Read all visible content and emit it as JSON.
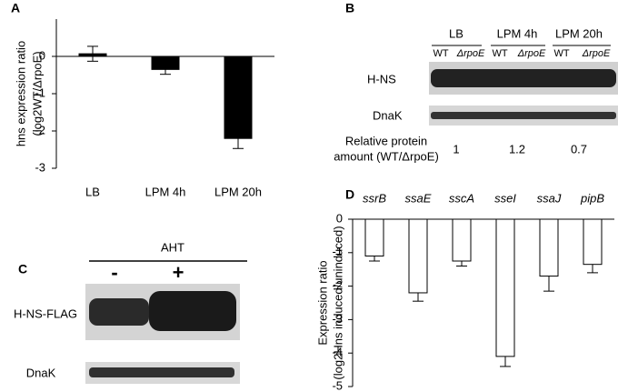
{
  "chart_data": [
    {
      "type": "bar",
      "panel_label": "A",
      "ylabel": [
        "hns expression ratio",
        "(log2WT/ΔrpoE)"
      ],
      "categories": [
        "LB",
        "LPM 4h",
        "LPM 20h"
      ],
      "values": [
        0.07,
        -0.35,
        -2.2
      ],
      "errors": [
        0.2,
        0.13,
        0.27
      ],
      "color": "#000000",
      "edgecolor": "#000000",
      "ylim": [
        -3,
        1
      ],
      "yticks": [
        -3,
        -2,
        -1,
        0
      ],
      "category_label_position": "bottom",
      "category_labels_italic": false
    },
    {
      "type": "bar",
      "panel_label": "D",
      "ylabel": [
        "Expression ratio",
        "(log2Hns induced/uninduced)"
      ],
      "categories": [
        "ssrB",
        "ssaE",
        "sscA",
        "sseI",
        "ssaJ",
        "pipB"
      ],
      "values": [
        -1.1,
        -2.2,
        -1.25,
        -4.1,
        -1.7,
        -1.35
      ],
      "errors": [
        0.15,
        0.25,
        0.15,
        0.3,
        0.45,
        0.25
      ],
      "color": "#ffffff",
      "edgecolor": "#000000",
      "ylim": [
        -5,
        0
      ],
      "yticks": [
        -5,
        -4,
        -3,
        -2,
        -1,
        0
      ],
      "category_label_position": "top",
      "category_labels_italic": true
    }
  ],
  "blot_b": {
    "panel_label": "B",
    "conditions": [
      "LB",
      "LPM 4h",
      "LPM 20h"
    ],
    "strains": [
      "WT",
      "ΔrpoE",
      "WT",
      "ΔrpoE",
      "WT",
      "ΔrpoE"
    ],
    "rows": [
      "H-NS",
      "DnaK"
    ],
    "quant_label": [
      "Relative protein",
      "amount (WT/ΔrpoE)"
    ],
    "quant_values": [
      "1",
      "1.2",
      "0.7"
    ]
  },
  "blot_c": {
    "panel_label": "C",
    "treatment": "AHT",
    "conditions": [
      "-",
      "+"
    ],
    "rows": [
      "H-NS-FLAG",
      "DnaK"
    ]
  }
}
